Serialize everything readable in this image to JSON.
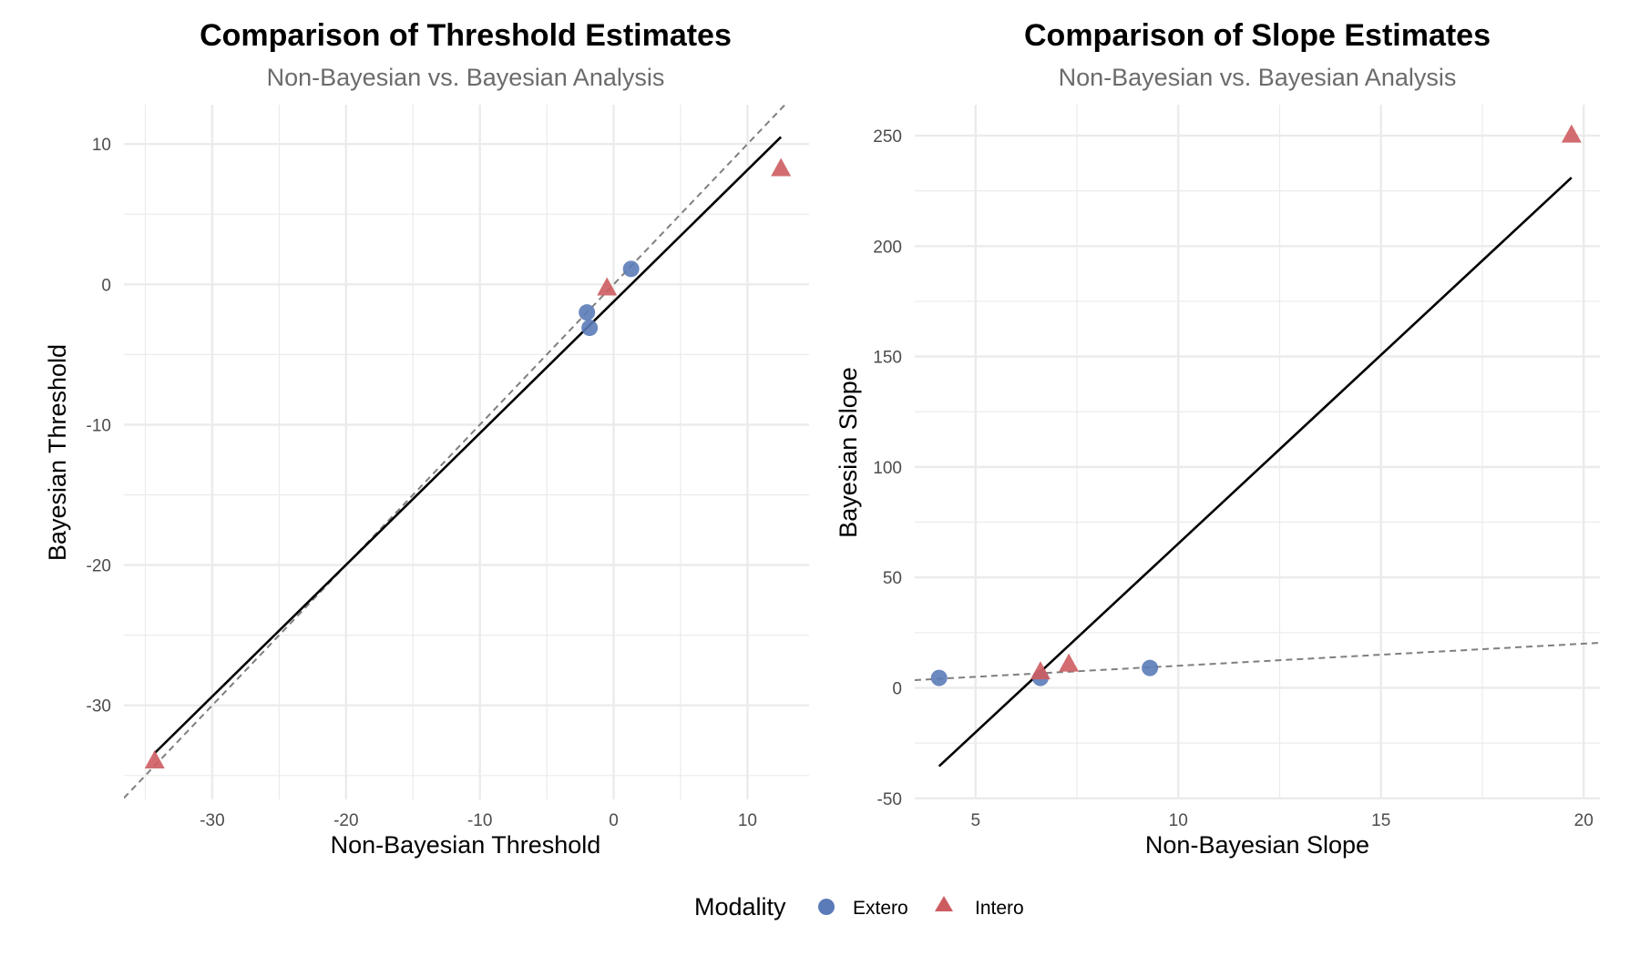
{
  "colors": {
    "Extero": "#5b7bb8",
    "Intero": "#cd5c61",
    "fit_line": "#000000",
    "identity_line": "#7f7f7f",
    "grid": "#ebebeb"
  },
  "legend": {
    "title": "Modality",
    "items": [
      {
        "label": "Extero",
        "shape": "circle"
      },
      {
        "label": "Intero",
        "shape": "triangle"
      }
    ]
  },
  "chart_data": [
    {
      "type": "scatter",
      "title": "Comparison of Threshold Estimates",
      "subtitle": "Non-Bayesian vs. Bayesian Analysis",
      "xlabel": "Non-Bayesian Threshold",
      "ylabel": "Bayesian Threshold",
      "xlim": [
        -36.6,
        14.6
      ],
      "ylim": [
        -36.7,
        12.8
      ],
      "xticks": [
        -30,
        -20,
        -10,
        0,
        10
      ],
      "xtick_labels": [
        "-30",
        "-20",
        "-10",
        "0",
        "10"
      ],
      "xminor": [
        -35,
        -25,
        -15,
        -5,
        5
      ],
      "yticks": [
        -30,
        -20,
        -10,
        0,
        10
      ],
      "ytick_labels": [
        "-30",
        "-20",
        "-10",
        "0",
        "10"
      ],
      "yminor": [
        -35,
        -25,
        -15,
        -5,
        5
      ],
      "grid": true,
      "series": [
        {
          "name": "Extero",
          "shape": "circle",
          "points": [
            [
              1.3,
              1.1
            ],
            [
              -2.0,
              -2.0
            ],
            [
              -1.8,
              -3.1
            ]
          ]
        },
        {
          "name": "Intero",
          "shape": "triangle",
          "points": [
            [
              12.5,
              8.2
            ],
            [
              -0.5,
              -0.3
            ],
            [
              -34.3,
              -34.0
            ]
          ]
        }
      ],
      "fit_line": {
        "x": [
          -34.3,
          12.5
        ],
        "y": [
          -33.4,
          10.5
        ]
      },
      "identity_line": {
        "slope": 1,
        "intercept": 0
      }
    },
    {
      "type": "scatter",
      "title": "Comparison of Slope Estimates",
      "subtitle": "Non-Bayesian vs. Bayesian Analysis",
      "xlabel": "Non-Bayesian Slope",
      "ylabel": "Bayesian Slope",
      "xlim": [
        3.5,
        20.4
      ],
      "ylim": [
        -50.5,
        264
      ],
      "xticks": [
        5,
        10,
        15,
        20
      ],
      "xtick_labels": [
        "5",
        "10",
        "15",
        "20"
      ],
      "xminor": [
        7.5,
        12.5,
        17.5
      ],
      "yticks": [
        -50,
        0,
        50,
        100,
        150,
        200,
        250
      ],
      "ytick_labels": [
        "-50",
        "0",
        "50",
        "100",
        "150",
        "200",
        "250"
      ],
      "yminor": [
        -25,
        25,
        75,
        125,
        175,
        225
      ],
      "grid": true,
      "series": [
        {
          "name": "Extero",
          "shape": "circle",
          "points": [
            [
              4.1,
              4.5
            ],
            [
              6.6,
              4.5
            ],
            [
              9.3,
              9.0
            ]
          ]
        },
        {
          "name": "Intero",
          "shape": "triangle",
          "points": [
            [
              6.6,
              7.0
            ],
            [
              7.3,
              10.5
            ],
            [
              19.7,
              250.0
            ]
          ]
        }
      ],
      "fit_line": {
        "x": [
          4.1,
          19.7
        ],
        "y": [
          -35.5,
          231.0
        ]
      },
      "identity_line": {
        "slope": 1,
        "intercept": 0
      }
    }
  ]
}
